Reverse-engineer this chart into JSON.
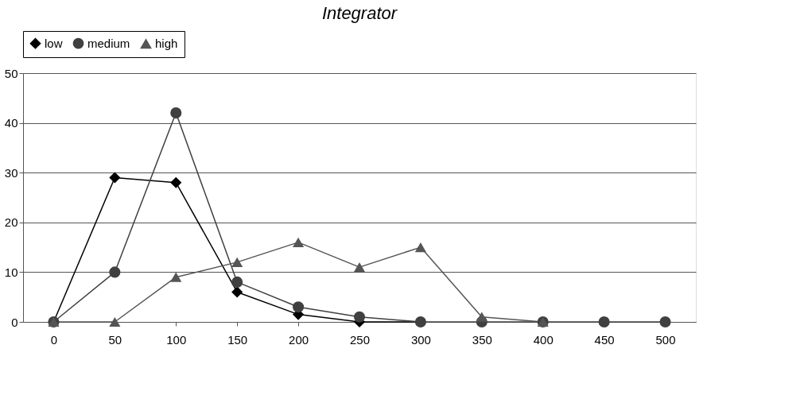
{
  "chart_data": {
    "type": "line",
    "title": "Integrator",
    "categories": [
      "0",
      "50",
      "100",
      "150",
      "200",
      "250",
      "300",
      "350",
      "400",
      "450",
      "500"
    ],
    "series": [
      {
        "name": "low",
        "color": "#000000",
        "marker": "diamond",
        "values": [
          0,
          29,
          28,
          6,
          1.5,
          0,
          0,
          null,
          null,
          null,
          null
        ]
      },
      {
        "name": "medium",
        "color": "#404040",
        "marker": "circle",
        "values": [
          0,
          10,
          42,
          8,
          3,
          1,
          0,
          0,
          0,
          0,
          0
        ]
      },
      {
        "name": "high",
        "color": "#555555",
        "marker": "triangle",
        "values": [
          0,
          0,
          9,
          12,
          16,
          11,
          15,
          1,
          0,
          null,
          null
        ]
      }
    ],
    "ylim": [
      0,
      50
    ],
    "yticks": [
      0,
      10,
      20,
      30,
      40,
      50
    ],
    "grid": "y",
    "legend": "top",
    "line_style": "solid"
  }
}
